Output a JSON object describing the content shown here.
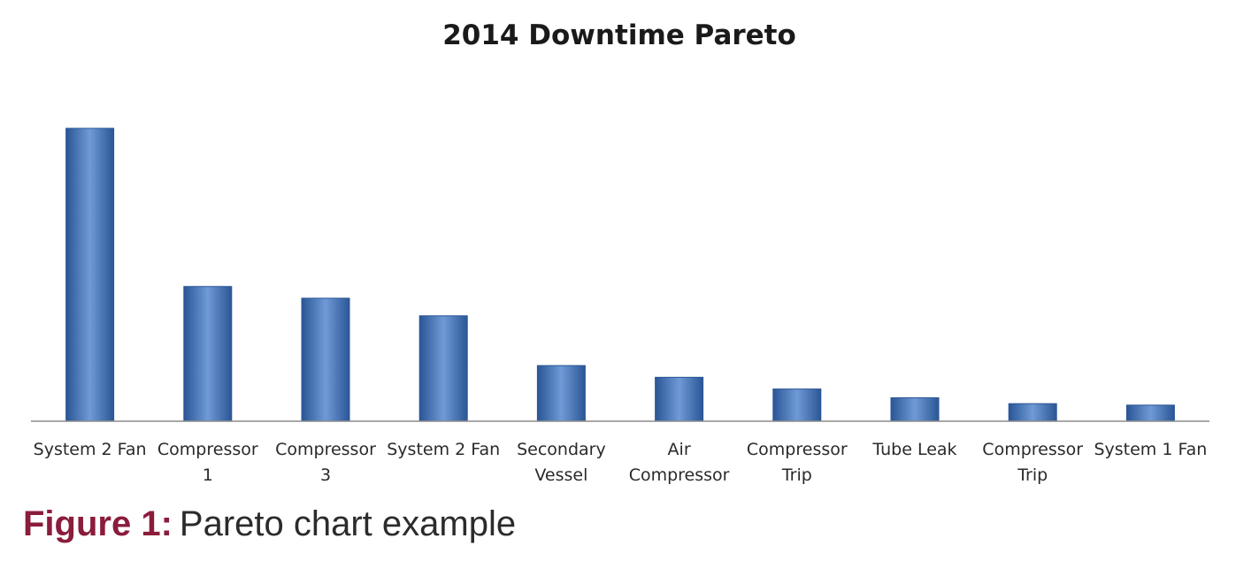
{
  "chart_data": {
    "type": "bar",
    "title": "2014 Downtime Pareto",
    "xlabel": "",
    "ylabel": "",
    "categories": [
      [
        "System 2 Fan"
      ],
      [
        "Compressor",
        "1"
      ],
      [
        "Compressor",
        "3"
      ],
      [
        "System 2 Fan"
      ],
      [
        "Secondary",
        "Vessel"
      ],
      [
        "Air",
        "Compressor"
      ],
      [
        "Compressor",
        "Trip"
      ],
      [
        "Tube Leak"
      ],
      [
        "Compressor",
        "Trip"
      ],
      [
        "System 1 Fan"
      ]
    ],
    "values": [
      100,
      46,
      42,
      36,
      19,
      15,
      11,
      8,
      6,
      5.5
    ],
    "ylim": [
      0,
      100
    ],
    "grid": false,
    "legend": "none",
    "axis_values_shown": false,
    "bar_color": "#3f6fb6",
    "bar_color_dark": "#2b5696",
    "bar_color_light": "#6f9ad6"
  },
  "caption": {
    "label": "Figure 1:",
    "text": "Pareto chart example",
    "label_color": "#8a1c3c"
  }
}
